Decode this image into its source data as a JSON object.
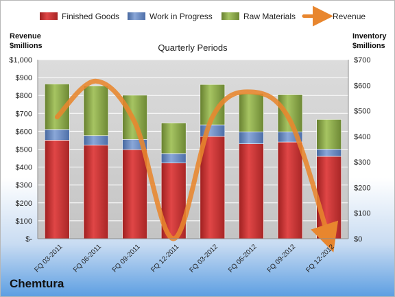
{
  "chart_data": {
    "type": "bar",
    "stacked": true,
    "title": "Quarterly Periods",
    "company": "Chemtura",
    "left_axis_title": [
      "Revenue",
      "$millions"
    ],
    "right_axis_title": [
      "Inventory",
      "$millions"
    ],
    "categories": [
      "FQ 03-2011",
      "FQ 06-2011",
      "FQ 09-2011",
      "FQ 12-2011",
      "FQ 03-2012",
      "FQ 06-2012",
      "FQ 09-2012",
      "FQ 12-2012"
    ],
    "left_ticks": [
      "$-",
      "$100",
      "$200",
      "$300",
      "$400",
      "$500",
      "$600",
      "$700",
      "$800",
      "$900",
      "$1,000"
    ],
    "right_ticks": [
      "$0",
      "$100",
      "$200",
      "$300",
      "$400",
      "$500",
      "$600",
      "$700"
    ],
    "left_ylim": [
      0,
      1000
    ],
    "right_ylim": [
      0,
      700
    ],
    "grid": true,
    "legend_position": "top",
    "series": [
      {
        "name": "Finished Goods",
        "axis": "right",
        "color": "#d23a3a",
        "values": [
          385,
          366,
          348,
          296,
          400,
          371,
          378,
          322
        ]
      },
      {
        "name": "Work in Progress",
        "axis": "right",
        "color": "#6d8fc8",
        "values": [
          42,
          37,
          40,
          37,
          45,
          47,
          40,
          28
        ]
      },
      {
        "name": "Raw Materials",
        "axis": "right",
        "color": "#8faf4c",
        "values": [
          178,
          195,
          173,
          120,
          158,
          150,
          146,
          116
        ]
      },
      {
        "name": "Revenue",
        "axis": "left",
        "type": "line",
        "color": "#e8862e",
        "values": [
          680,
          880,
          650,
          0,
          680,
          820,
          660,
          0
        ]
      }
    ]
  }
}
